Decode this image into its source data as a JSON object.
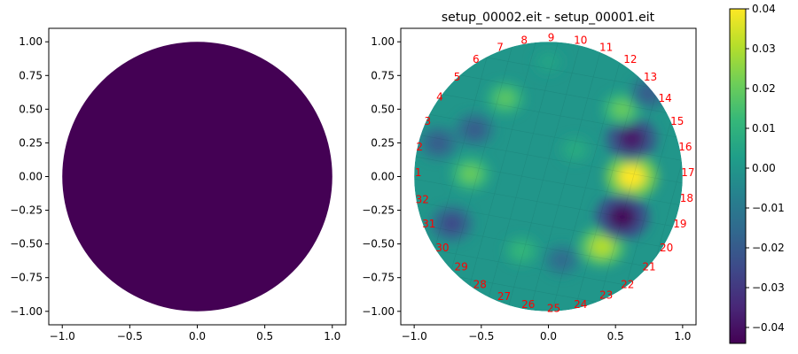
{
  "chart_data": [
    {
      "type": "heatmap",
      "title": "",
      "xlabel": "",
      "ylabel": "",
      "xlim": [
        -1.1,
        1.1
      ],
      "ylim": [
        -1.1,
        1.1
      ],
      "xticks": [
        "−1.0",
        "−0.5",
        "0.0",
        "0.5",
        "1.0"
      ],
      "yticks": [
        "1.00",
        "0.75",
        "0.50",
        "0.25",
        "0.00",
        "−0.25",
        "−0.50",
        "−0.75",
        "−1.00"
      ],
      "shape": "disk",
      "center": [
        0,
        0
      ],
      "radius": 1.0,
      "fill_color": "#440154",
      "uniform_value": -0.043
    },
    {
      "type": "heatmap",
      "title": "setup_00002.eit - setup_00001.eit",
      "xlabel": "",
      "ylabel": "",
      "xlim": [
        -1.1,
        1.1
      ],
      "ylim": [
        -1.1,
        1.1
      ],
      "xticks": [
        "−1.0",
        "−0.5",
        "0.0",
        "0.5",
        "1.0"
      ],
      "yticks": [
        "1.00",
        "0.75",
        "0.50",
        "0.25",
        "0.00",
        "−0.25",
        "−0.50",
        "−0.75",
        "−1.00"
      ],
      "shape": "disk",
      "center": [
        0,
        0
      ],
      "radius": 1.0,
      "background_value": 0.0,
      "blobs": [
        {
          "x": 0.62,
          "y": 0.0,
          "value": 0.04
        },
        {
          "x": 0.4,
          "y": -0.52,
          "value": 0.03
        },
        {
          "x": 0.55,
          "y": -0.3,
          "value": -0.042
        },
        {
          "x": 0.62,
          "y": 0.28,
          "value": -0.038
        },
        {
          "x": 0.55,
          "y": 0.5,
          "value": 0.02
        },
        {
          "x": 0.75,
          "y": 0.62,
          "value": -0.02
        },
        {
          "x": -0.58,
          "y": 0.02,
          "value": 0.02
        },
        {
          "x": -0.72,
          "y": -0.35,
          "value": -0.025
        },
        {
          "x": -0.55,
          "y": 0.35,
          "value": -0.02
        },
        {
          "x": -0.32,
          "y": 0.58,
          "value": 0.018
        },
        {
          "x": -0.82,
          "y": 0.25,
          "value": -0.02
        },
        {
          "x": 0.1,
          "y": -0.62,
          "value": -0.015
        },
        {
          "x": -0.2,
          "y": -0.55,
          "value": 0.012
        },
        {
          "x": 0.2,
          "y": 0.2,
          "value": 0.008
        },
        {
          "x": 0.0,
          "y": 0.85,
          "value": 0.005
        }
      ],
      "electrodes": [
        {
          "label": "1",
          "x": -0.97,
          "y": 0.03
        },
        {
          "label": "2",
          "x": -0.96,
          "y": 0.22
        },
        {
          "label": "3",
          "x": -0.9,
          "y": 0.41
        },
        {
          "label": "4",
          "x": -0.81,
          "y": 0.59
        },
        {
          "label": "5",
          "x": -0.68,
          "y": 0.74
        },
        {
          "label": "6",
          "x": -0.54,
          "y": 0.87
        },
        {
          "label": "7",
          "x": -0.36,
          "y": 0.96
        },
        {
          "label": "8",
          "x": -0.18,
          "y": 1.01
        },
        {
          "label": "9",
          "x": 0.02,
          "y": 1.03
        },
        {
          "label": "10",
          "x": 0.24,
          "y": 1.01
        },
        {
          "label": "11",
          "x": 0.43,
          "y": 0.96
        },
        {
          "label": "12",
          "x": 0.61,
          "y": 0.87
        },
        {
          "label": "13",
          "x": 0.76,
          "y": 0.74
        },
        {
          "label": "14",
          "x": 0.87,
          "y": 0.58
        },
        {
          "label": "15",
          "x": 0.96,
          "y": 0.41
        },
        {
          "label": "16",
          "x": 1.02,
          "y": 0.22
        },
        {
          "label": "17",
          "x": 1.04,
          "y": 0.03
        },
        {
          "label": "18",
          "x": 1.03,
          "y": -0.16
        },
        {
          "label": "19",
          "x": 0.98,
          "y": -0.35
        },
        {
          "label": "20",
          "x": 0.88,
          "y": -0.53
        },
        {
          "label": "21",
          "x": 0.75,
          "y": -0.67
        },
        {
          "label": "22",
          "x": 0.59,
          "y": -0.8
        },
        {
          "label": "23",
          "x": 0.43,
          "y": -0.88
        },
        {
          "label": "24",
          "x": 0.24,
          "y": -0.95
        },
        {
          "label": "25",
          "x": 0.04,
          "y": -0.98
        },
        {
          "label": "26",
          "x": -0.15,
          "y": -0.95
        },
        {
          "label": "27",
          "x": -0.33,
          "y": -0.89
        },
        {
          "label": "28",
          "x": -0.51,
          "y": -0.8
        },
        {
          "label": "29",
          "x": -0.65,
          "y": -0.67
        },
        {
          "label": "30",
          "x": -0.79,
          "y": -0.53
        },
        {
          "label": "31",
          "x": -0.89,
          "y": -0.35
        },
        {
          "label": "32",
          "x": -0.94,
          "y": -0.17
        }
      ],
      "electrode_label_color": "#ff0000"
    }
  ],
  "colorbar": {
    "vmin": -0.044,
    "vmax": 0.04,
    "ticks": [
      0.04,
      0.03,
      0.02,
      0.01,
      0.0,
      -0.01,
      -0.02,
      -0.03,
      -0.04
    ],
    "tick_labels": [
      "0.04",
      "0.03",
      "0.02",
      "0.01",
      "0.00",
      "−0.01",
      "−0.02",
      "−0.03",
      "−0.04"
    ],
    "colormap": "viridis",
    "colormap_stops": [
      "#440154",
      "#482878",
      "#3e4989",
      "#31688e",
      "#26828e",
      "#1f9e89",
      "#35b779",
      "#6ece58",
      "#b5de2b",
      "#fde725"
    ]
  }
}
